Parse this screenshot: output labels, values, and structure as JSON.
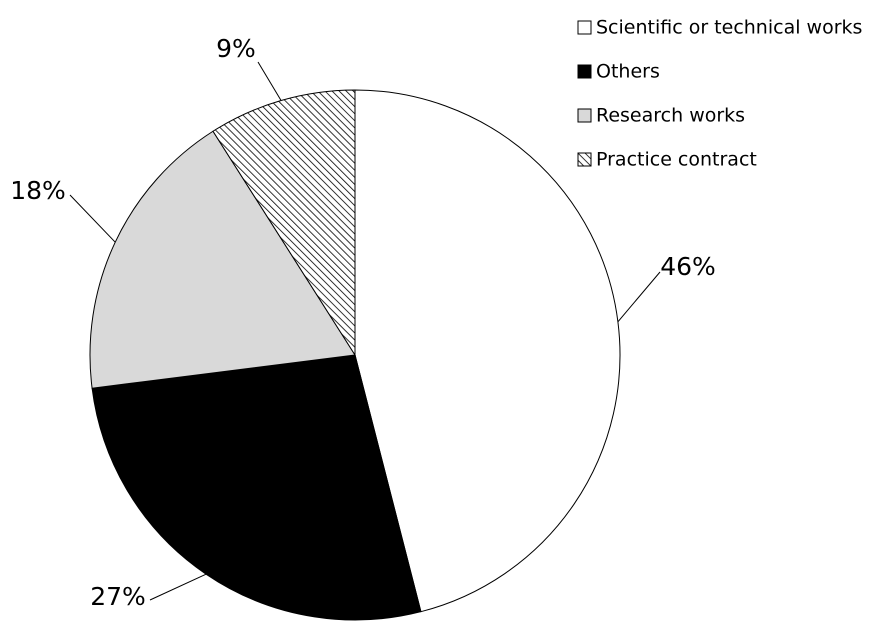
{
  "chart_data": {
    "type": "pie",
    "categories": [
      "Scientific or technical works",
      "Others",
      "Research works",
      "Practice contract"
    ],
    "values": [
      46,
      27,
      18,
      9
    ],
    "value_labels": [
      "46%",
      "27%",
      "18%",
      "9%"
    ],
    "colors": [
      "#ffffff",
      "#000000",
      "#d9d9d9",
      "#ffffff"
    ],
    "hatch": [
      false,
      false,
      false,
      true
    ],
    "legend": "top-right"
  }
}
